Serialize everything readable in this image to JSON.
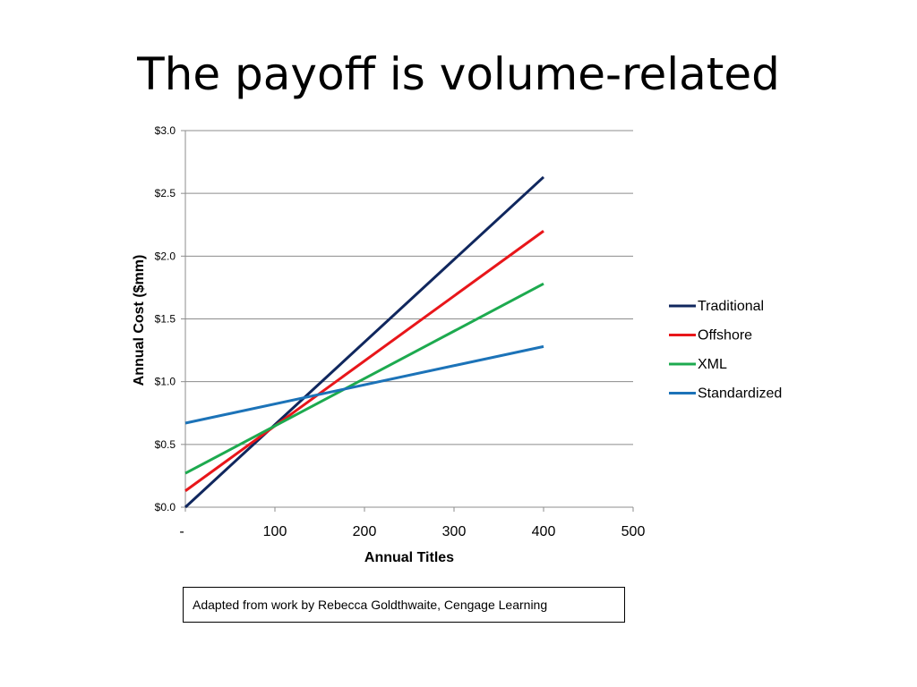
{
  "slide": {
    "title": "The payoff is volume-related",
    "credit": "Adapted from work by Rebecca Goldthwaite, Cengage Learning"
  },
  "chart_data": {
    "type": "line",
    "title": "",
    "xlabel": "Annual Titles",
    "ylabel": "Annual Cost ($mm)",
    "xlim": [
      0,
      500
    ],
    "ylim": [
      0,
      3.0
    ],
    "x_ticks": [
      {
        "value": 0,
        "label": "-"
      },
      {
        "value": 100,
        "label": "100"
      },
      {
        "value": 200,
        "label": "200"
      },
      {
        "value": 300,
        "label": "300"
      },
      {
        "value": 400,
        "label": "400"
      },
      {
        "value": 500,
        "label": "500"
      }
    ],
    "y_ticks": [
      {
        "value": 0.0,
        "label": "$0.0"
      },
      {
        "value": 0.5,
        "label": "$0.5"
      },
      {
        "value": 1.0,
        "label": "$1.0"
      },
      {
        "value": 1.5,
        "label": "$1.5"
      },
      {
        "value": 2.0,
        "label": "$2.0"
      },
      {
        "value": 2.5,
        "label": "$2.5"
      },
      {
        "value": 3.0,
        "label": "$3.0"
      }
    ],
    "grid": "horizontal",
    "legend_position": "right",
    "series": [
      {
        "name": "Traditional",
        "color": "#10275E",
        "x": [
          0,
          400
        ],
        "values": [
          0.0,
          2.63
        ]
      },
      {
        "name": "Offshore",
        "color": "#E8161A",
        "x": [
          0,
          400
        ],
        "values": [
          0.13,
          2.2
        ]
      },
      {
        "name": "XML",
        "color": "#1DAA4F",
        "x": [
          0,
          400
        ],
        "values": [
          0.27,
          1.78
        ]
      },
      {
        "name": "Standardized",
        "color": "#1C73B8",
        "x": [
          0,
          400
        ],
        "values": [
          0.67,
          1.28
        ]
      }
    ]
  }
}
